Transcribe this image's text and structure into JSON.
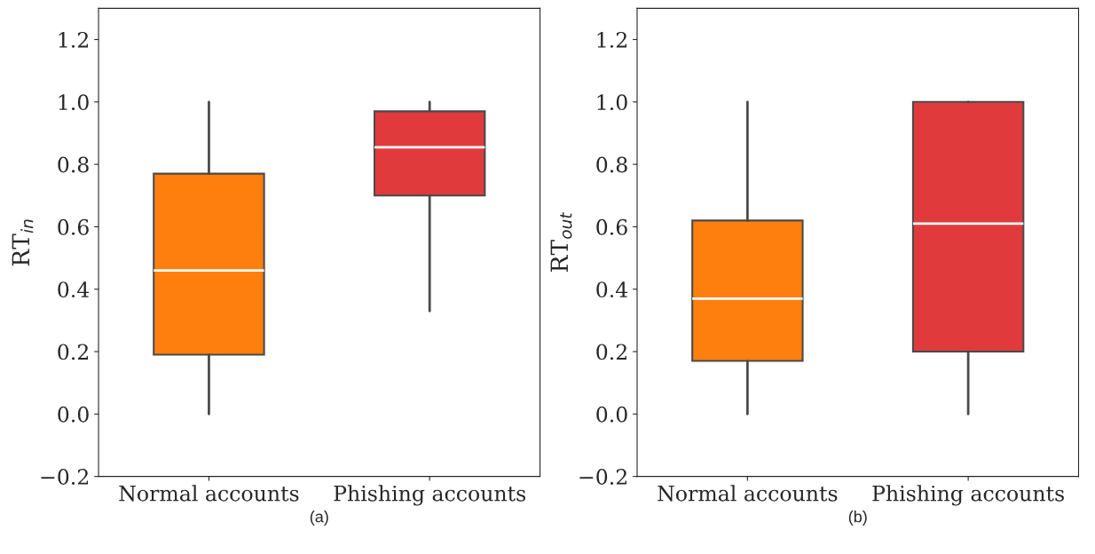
{
  "chart_data": [
    {
      "type": "box",
      "xlabel": "(a)",
      "ylabel": "RT$_{in}$",
      "categories": [
        "Normal accounts",
        "Phishing accounts"
      ],
      "colors": [
        "#ff7f0e",
        "#e03a3c"
      ],
      "boxes": [
        {
          "low": 0,
          "q1": 0.19,
          "median": 0.46,
          "q3": 0.77,
          "high": 1.0
        },
        {
          "low": 0.33,
          "q1": 0.7,
          "median": 0.855,
          "q3": 0.97,
          "high": 1.0
        }
      ],
      "ylim": [
        -0.2,
        1.3
      ],
      "yticks": [
        {
          "value": -0.2,
          "label": "−0.2"
        },
        {
          "value": 0.0,
          "label": "0.0"
        },
        {
          "value": 0.2,
          "label": "0.2"
        },
        {
          "value": 0.4,
          "label": "0.4"
        },
        {
          "value": 0.6,
          "label": "0.6"
        },
        {
          "value": 0.8,
          "label": "0.8"
        },
        {
          "value": 1.0,
          "label": "1.0"
        },
        {
          "value": 1.2,
          "label": "1.2"
        }
      ],
      "grid": false,
      "legend": false
    },
    {
      "type": "box",
      "xlabel": "(b)",
      "ylabel": "RT$_{out}$",
      "categories": [
        "Normal accounts",
        "Phishing accounts"
      ],
      "colors": [
        "#ff7f0e",
        "#e03a3c"
      ],
      "boxes": [
        {
          "low": 0,
          "q1": 0.17,
          "median": 0.37,
          "q3": 0.62,
          "high": 1.0
        },
        {
          "low": 0,
          "q1": 0.2,
          "median": 0.61,
          "q3": 1.0,
          "high": 1.0
        }
      ],
      "ylim": [
        -0.2,
        1.3
      ],
      "yticks": [
        {
          "value": -0.2,
          "label": "−0.2"
        },
        {
          "value": 0.0,
          "label": "0.0"
        },
        {
          "value": 0.2,
          "label": "0.2"
        },
        {
          "value": 0.4,
          "label": "0.4"
        },
        {
          "value": 0.6,
          "label": "0.6"
        },
        {
          "value": 0.8,
          "label": "0.8"
        },
        {
          "value": 1.0,
          "label": "1.0"
        },
        {
          "value": 1.2,
          "label": "1.2"
        }
      ],
      "grid": false,
      "legend": false
    }
  ]
}
